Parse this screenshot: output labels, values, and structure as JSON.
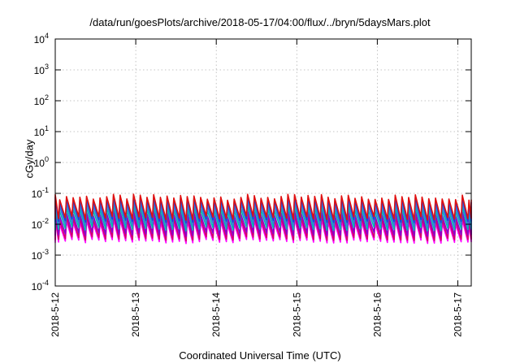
{
  "chart_data": {
    "type": "line",
    "title": "/data/run/goesPlots/archive/2018-05-17/04:00/flux/../bryn/5daysMars.plot",
    "xlabel": "Coordinated Universal Time (UTC)",
    "ylabel": "cGy/day",
    "y_scale": "log",
    "ylim": [
      0.0001,
      10000
    ],
    "y_ticks": [
      {
        "value": 0.0001,
        "base": "10",
        "exp": "-4"
      },
      {
        "value": 0.001,
        "base": "10",
        "exp": "-3"
      },
      {
        "value": 0.01,
        "base": "10",
        "exp": "-2"
      },
      {
        "value": 0.1,
        "base": "10",
        "exp": "-1"
      },
      {
        "value": 1,
        "base": "10",
        "exp": "0"
      },
      {
        "value": 10,
        "base": "10",
        "exp": "1"
      },
      {
        "value": 100,
        "base": "10",
        "exp": "2"
      },
      {
        "value": 1000,
        "base": "10",
        "exp": "3"
      },
      {
        "value": 10000,
        "base": "10",
        "exp": "4"
      }
    ],
    "xlim": [
      "2018-05-12 00:00",
      "2018-05-17 04:00"
    ],
    "x_ticks": [
      "2018-5-12",
      "2018-5-13",
      "2018-5-14",
      "2018-5-15",
      "2018-5-16",
      "2018-5-17"
    ],
    "grid": true,
    "pattern": {
      "cycle_hours": 2,
      "shape": "sawtooth",
      "ramp_minutes": 20
    },
    "series": [
      {
        "color": "#ff00ff",
        "peak": 0.012,
        "trough": 0.0028
      },
      {
        "color": "#d4006a",
        "peak": 0.016,
        "trough": 0.0034
      },
      {
        "color": "#8a00cc",
        "peak": 0.022,
        "trough": 0.0048
      },
      {
        "color": "#00b8b0",
        "peak": 0.032,
        "trough": 0.0072
      },
      {
        "color": "#3a7ad8",
        "peak": 0.045,
        "trough": 0.01
      },
      {
        "color": "#1f3fd8",
        "peak": 0.062,
        "trough": 0.013
      },
      {
        "color": "#e01010",
        "peak": 0.075,
        "trough": 0.016
      }
    ]
  }
}
